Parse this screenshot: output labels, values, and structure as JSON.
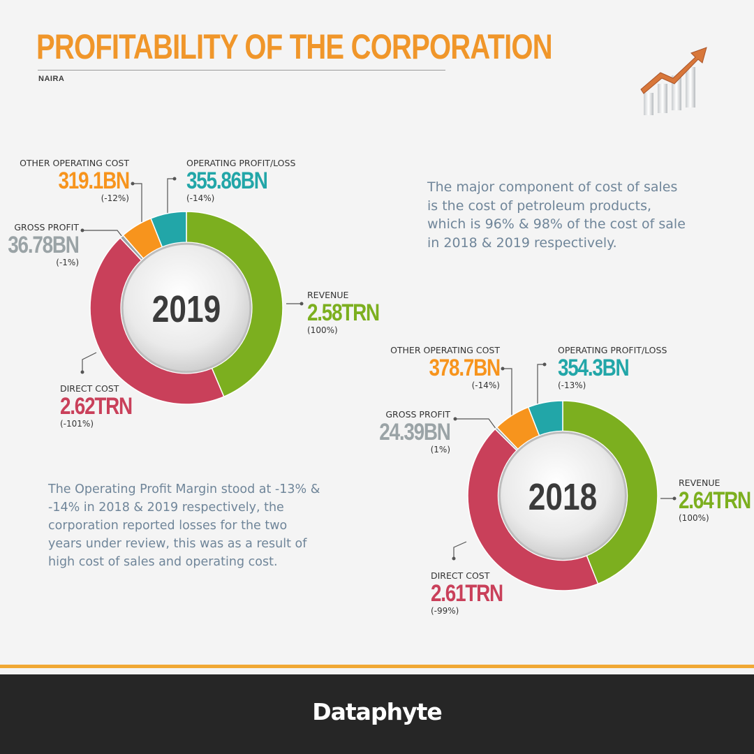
{
  "header": {
    "title": "PROFITABILITY OF THE CORPORATION",
    "subtitle": "NAIRA"
  },
  "colors": {
    "title": "#f0962a",
    "revenue": "#7caf1f",
    "direct_cost": "#c9405a",
    "gross_profit": "#9aa3a6",
    "other_operating_cost": "#f7941d",
    "operating_profit": "#22a6a8",
    "footer": "#262626",
    "footer_accent": "#f0a834"
  },
  "notes": {
    "cost_of_sales": "The major component of cost of sales is the cost of petroleum products, which is 96% & 98% of the cost of sale in 2018 & 2019 respectively.",
    "operating_margin": "The Operating Profit Margin stood at -13% & -14% in 2018 & 2019 respectively, the corporation reported losses for the two years under review, this was as a result of high cost of sales and operating cost."
  },
  "chart_data": [
    {
      "type": "pie",
      "year": "2019",
      "labels": {
        "revenue": {
          "name": "REVENUE",
          "value": "2.58TRN",
          "pct": "(100%)"
        },
        "direct_cost": {
          "name": "DIRECT COST",
          "value": "2.62TRN",
          "pct": "(-101%)"
        },
        "gross_profit": {
          "name": "GROSS PROFIT",
          "value": "36.78BN",
          "pct": "(-1%)"
        },
        "other_operating_cost": {
          "name": "OTHER OPERATING COST",
          "value": "319.1BN",
          "pct": "(-12%)"
        },
        "operating_profit": {
          "name": "OPERATING PROFIT/LOSS",
          "value": "355.86BN",
          "pct": "(-14%)"
        }
      },
      "slices": [
        {
          "key": "revenue",
          "value": 2580
        },
        {
          "key": "direct_cost",
          "value": 2620
        },
        {
          "key": "gross_profit",
          "value": 36.78
        },
        {
          "key": "other_operating_cost",
          "value": 319.1
        },
        {
          "key": "operating_profit",
          "value": 355.86
        }
      ]
    },
    {
      "type": "pie",
      "year": "2018",
      "labels": {
        "revenue": {
          "name": "REVENUE",
          "value": "2.64TRN",
          "pct": "(100%)"
        },
        "direct_cost": {
          "name": "DIRECT COST",
          "value": "2.61TRN",
          "pct": "(-99%)"
        },
        "gross_profit": {
          "name": "GROSS PROFIT",
          "value": "24.39BN",
          "pct": "(1%)"
        },
        "other_operating_cost": {
          "name": "OTHER OPERATING COST",
          "value": "378.7BN",
          "pct": "(-14%)"
        },
        "operating_profit": {
          "name": "OPERATING PROFIT/LOSS",
          "value": "354.3BN",
          "pct": "(-13%)"
        }
      },
      "slices": [
        {
          "key": "revenue",
          "value": 2640
        },
        {
          "key": "direct_cost",
          "value": 2610
        },
        {
          "key": "gross_profit",
          "value": 24.39
        },
        {
          "key": "other_operating_cost",
          "value": 378.7
        },
        {
          "key": "operating_profit",
          "value": 354.3
        }
      ]
    }
  ],
  "footer": {
    "brand": "Dataphyte"
  }
}
